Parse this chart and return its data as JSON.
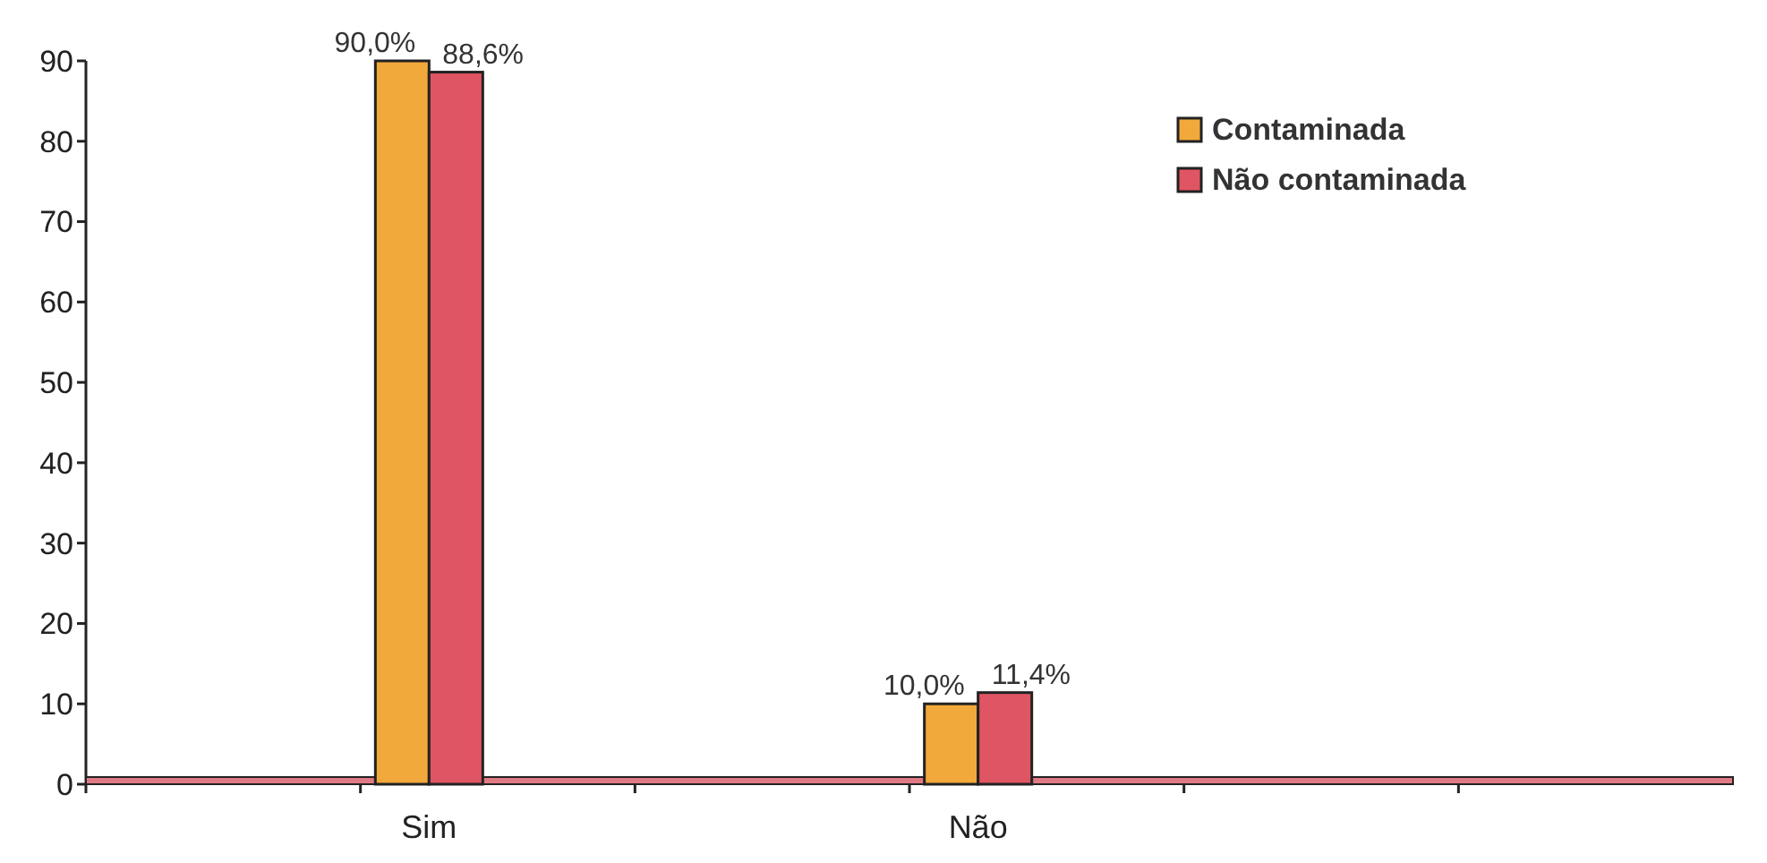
{
  "chart_data": {
    "type": "bar",
    "categories": [
      null,
      "Sim",
      null,
      "Não",
      null,
      null
    ],
    "series": [
      {
        "name": "Contaminada",
        "color": "#f2a93b",
        "values": [
          null,
          90.0,
          null,
          10.0,
          null,
          null
        ],
        "value_labels": [
          null,
          "90,0%",
          null,
          "10,0%",
          null,
          null
        ]
      },
      {
        "name": "Não contaminada",
        "color": "#e05563",
        "values": [
          null,
          88.6,
          null,
          11.4,
          null,
          null
        ],
        "value_labels": [
          null,
          "88,6%",
          null,
          "11,4%",
          null,
          null
        ]
      }
    ],
    "ylim": [
      0,
      90
    ],
    "yticks": [
      0,
      10,
      20,
      30,
      40,
      50,
      60,
      70,
      80,
      90
    ],
    "grid": false,
    "legend": "top right"
  }
}
